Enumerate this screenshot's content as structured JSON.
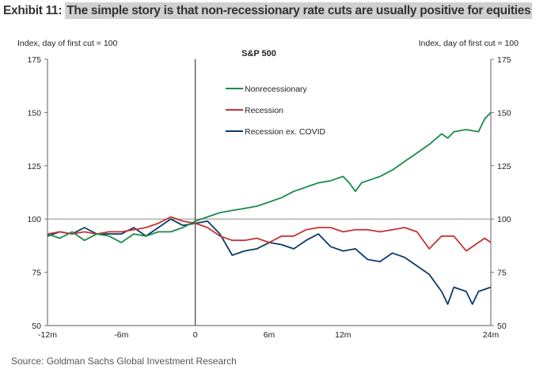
{
  "header": {
    "exhibit": "Exhibit 11:",
    "title": "The simple story is that non-recessionary rate cuts are usually positive for equities"
  },
  "source": "Source: Goldman Sachs Global Investment Research",
  "chart_data": {
    "type": "line",
    "title": "S&P 500",
    "ylabel_left": "Index, day of first cut = 100",
    "ylabel_right": "Index, day of first cut = 100",
    "ylim": [
      50,
      175
    ],
    "yticks": [
      "50",
      "75",
      "100",
      "125",
      "150",
      "175"
    ],
    "xlim": [
      -12,
      24
    ],
    "xticks": [
      {
        "v": -12,
        "label": "-12m"
      },
      {
        "v": -6,
        "label": "-6m"
      },
      {
        "v": 0,
        "label": "0"
      },
      {
        "v": 6,
        "label": "6m"
      },
      {
        "v": 12,
        "label": "12m"
      },
      {
        "v": 24,
        "label": "24m"
      }
    ],
    "reference_lines": {
      "x": 0,
      "y": 100
    },
    "legend_position": "top-center",
    "series": [
      {
        "name": "Nonrecessionary",
        "color": "#1a8a4a",
        "x": [
          -12,
          -11,
          -10,
          -9,
          -8,
          -7,
          -6,
          -5,
          -4,
          -3,
          -2,
          -1,
          0,
          1,
          2,
          3,
          4,
          5,
          6,
          7,
          8,
          9,
          10,
          11,
          12,
          12.5,
          13,
          13.5,
          14,
          15,
          16,
          17,
          18,
          19,
          20,
          20.5,
          21,
          22,
          23,
          23.5,
          24
        ],
        "y": [
          93,
          91,
          94,
          90,
          93,
          92,
          89,
          93,
          92,
          94,
          94,
          96,
          99,
          101,
          103,
          104,
          105,
          106,
          108,
          110,
          113,
          115,
          117,
          118,
          120,
          117,
          113,
          117,
          118,
          120,
          123,
          127,
          131,
          135,
          140,
          138,
          141,
          142,
          141,
          147,
          150
        ]
      },
      {
        "name": "Recession",
        "color": "#c83232",
        "x": [
          -12,
          -11,
          -10,
          -9,
          -8,
          -7,
          -6,
          -5,
          -4,
          -3,
          -2,
          -1,
          0,
          1,
          2,
          3,
          4,
          5,
          6,
          7,
          8,
          9,
          10,
          11,
          12,
          13,
          14,
          15,
          16,
          17,
          18,
          19,
          20,
          21,
          22,
          23,
          23.5,
          24
        ],
        "y": [
          93,
          94,
          93,
          94,
          93,
          94,
          94,
          95,
          96,
          98,
          101,
          99,
          98,
          96,
          92,
          90,
          90,
          91,
          89,
          92,
          92,
          95,
          96,
          96,
          94,
          95,
          95,
          94,
          95,
          96,
          94,
          86,
          92,
          92,
          85,
          89,
          91,
          89
        ]
      },
      {
        "name": "Recession ex. COVID",
        "color": "#0d3a6b",
        "x": [
          -12,
          -11,
          -10,
          -9,
          -8,
          -7,
          -6,
          -5,
          -4,
          -3,
          -2,
          -1,
          0,
          1,
          2,
          3,
          4,
          5,
          6,
          7,
          8,
          9,
          10,
          11,
          12,
          13,
          14,
          15,
          16,
          17,
          18,
          19,
          20,
          20.5,
          21,
          22,
          22.5,
          23,
          24
        ],
        "y": [
          92,
          94,
          93,
          96,
          93,
          93,
          93,
          96,
          92,
          96,
          100,
          97,
          98,
          99,
          93,
          83,
          85,
          86,
          89,
          88,
          86,
          90,
          93,
          87,
          85,
          86,
          81,
          80,
          84,
          82,
          78,
          74,
          66,
          60,
          68,
          66,
          60,
          66,
          68
        ]
      }
    ]
  }
}
